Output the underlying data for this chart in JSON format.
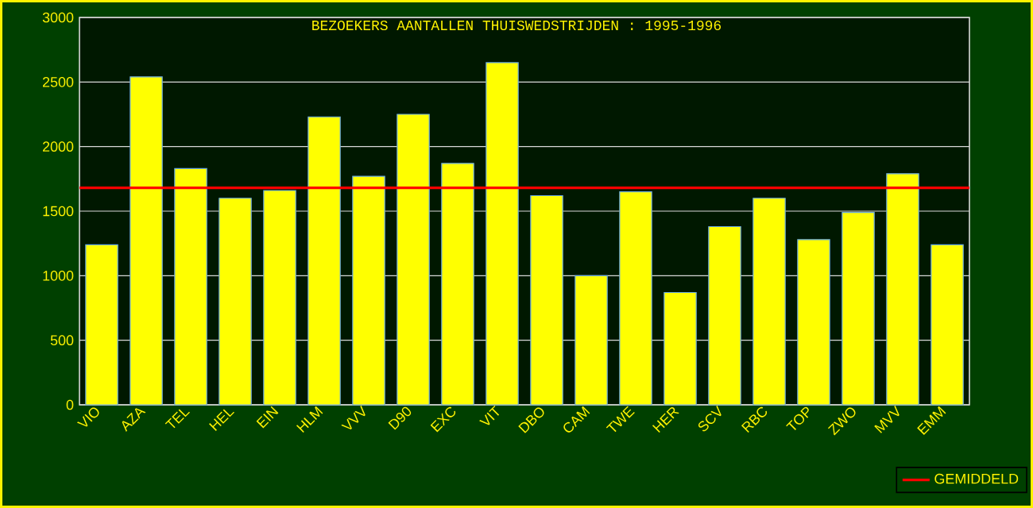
{
  "chart_data": {
    "type": "bar",
    "title": "BEZOEKERS AANTALLEN THUISWEDSTRIJDEN : 1995-1996",
    "categories": [
      "VIO",
      "AZA",
      "TEL",
      "HEL",
      "EIN",
      "HLM",
      "VVV",
      "D90",
      "EXC",
      "VIT",
      "DBO",
      "CAM",
      "TWE",
      "HER",
      "SCV",
      "RBC",
      "TOP",
      "ZWO",
      "MVV",
      "EMM"
    ],
    "values": [
      1240,
      2540,
      1830,
      1600,
      1660,
      2230,
      1770,
      2250,
      1870,
      2650,
      1620,
      1000,
      1650,
      870,
      1380,
      1600,
      1280,
      1490,
      1790,
      1240
    ],
    "color": "#ffff00",
    "ylim": [
      0,
      3000
    ],
    "yticks": [
      0,
      500,
      1000,
      1500,
      2000,
      2500,
      3000
    ],
    "grid": "y",
    "ref_lines": [
      {
        "axis": "y",
        "value": 1680,
        "label": "GEMIDDELD",
        "color": "#ff0000"
      }
    ],
    "legend": "bottom right"
  }
}
